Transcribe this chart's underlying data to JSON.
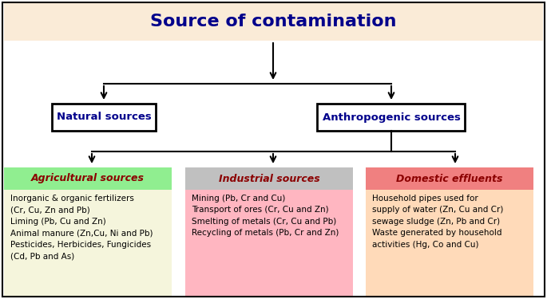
{
  "title": "Source of contamination",
  "title_color": "#00008B",
  "title_bg_color": "#FAEBD7",
  "title_fontsize": 16,
  "natural_label": "Natural sources",
  "anthropogenic_label": "Anthropogenic sources",
  "node_text_color": "#00008B",
  "node_box_color": "#FFFFFF",
  "node_border_color": "#000000",
  "level2_nodes": [
    {
      "label": "Agricultural sources",
      "header_bg": "#90EE90",
      "body_bg": "#F5F5DC",
      "header_text_color": "#8B0000",
      "content": "Inorganic & organic fertilizers\n(Cr, Cu, Zn and Pb)\nLiming (Pb, Cu and Zn)\nAnimal manure (Zn,Cu, Ni and Pb)\nPesticides, Herbicides, Fungicides\n(Cd, Pb and As)"
    },
    {
      "label": "Industrial sources",
      "header_bg": "#C0C0C0",
      "body_bg": "#FFB6C1",
      "header_text_color": "#8B0000",
      "content": "Mining (Pb, Cr and Cu)\nTransport of ores (Cr, Cu and Zn)\nSmelting of metals (Cr, Cu and Pb)\nRecycling of metals (Pb, Cr and Zn)"
    },
    {
      "label": "Domestic effluents",
      "header_bg": "#F08080",
      "body_bg": "#FFDAB9",
      "header_text_color": "#8B0000",
      "content": "Household pipes used for\nsupply of water (Zn, Cu and Cr)\nsewage sludge (Zn, Pb and Cr)\nWaste generated by household\nactivities (Hg, Co and Cu)"
    }
  ],
  "fig_width": 6.85,
  "fig_height": 3.75,
  "dpi": 100
}
